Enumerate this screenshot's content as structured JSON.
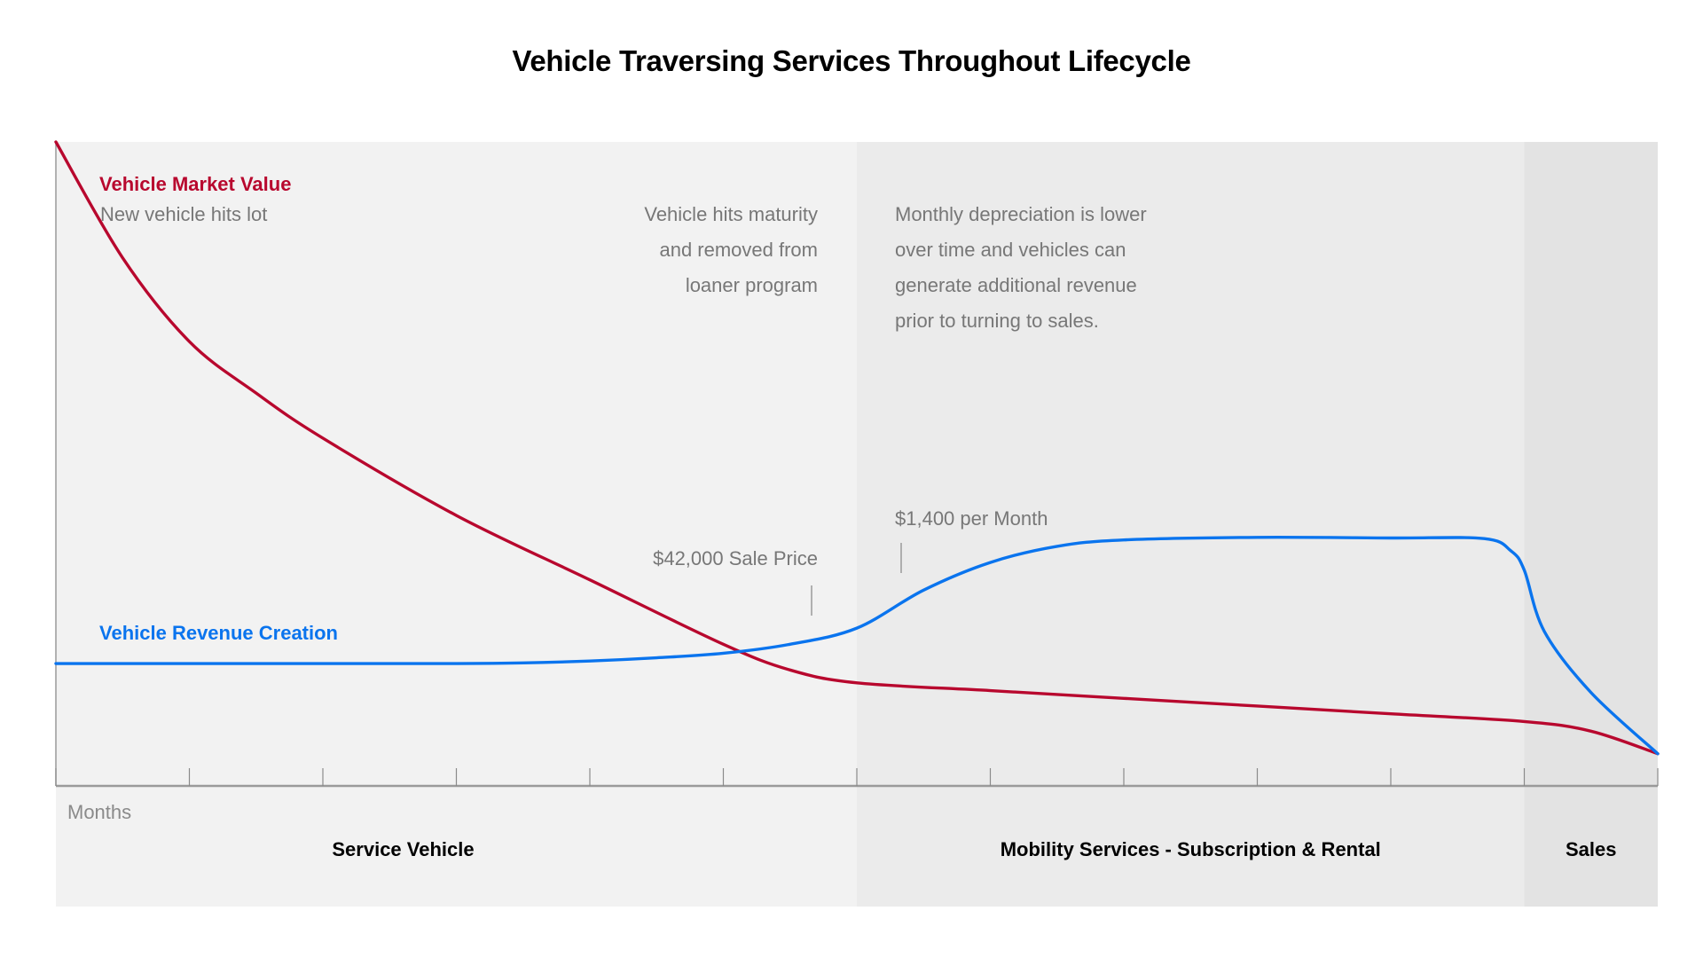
{
  "chart_data": {
    "type": "line",
    "title": "Vehicle Traversing Services Throughout Lifecycle",
    "xlabel": "Months",
    "ylabel": "",
    "xlim": [
      0,
      12
    ],
    "ylim": [
      0,
      100
    ],
    "x_ticks": [
      0,
      1,
      2,
      3,
      4,
      5,
      6,
      7,
      8,
      9,
      10,
      11,
      12
    ],
    "x_tick_labels_shown": false,
    "y_ticks_shown": false,
    "grid": false,
    "legend": "inline labels top-left",
    "phases": [
      {
        "name": "Service Vehicle",
        "start": 0,
        "end": 6,
        "color": "#f2f2f2"
      },
      {
        "name": "Mobility Services - Subscription & Rental",
        "start": 6,
        "end": 11,
        "color": "#ebebeb"
      },
      {
        "name": "Sales",
        "start": 11,
        "end": 12,
        "color": "#e3e3e3"
      }
    ],
    "series": [
      {
        "name": "Vehicle Market Value",
        "subtitle": "New vehicle hits lot",
        "color": "#b8082e",
        "points": [
          [
            0,
            100
          ],
          [
            0.5,
            82
          ],
          [
            1,
            69
          ],
          [
            1.5,
            61
          ],
          [
            2,
            54
          ],
          [
            3,
            42
          ],
          [
            4,
            32
          ],
          [
            5,
            22
          ],
          [
            5.5,
            18
          ],
          [
            6,
            16
          ],
          [
            7,
            14.8
          ],
          [
            8,
            13.6
          ],
          [
            9,
            12.4
          ],
          [
            10,
            11.2
          ],
          [
            11,
            10
          ],
          [
            11.5,
            8.5
          ],
          [
            12,
            5
          ]
        ]
      },
      {
        "name": "Vehicle Revenue Creation",
        "color": "#0a74ee",
        "points": [
          [
            0,
            19
          ],
          [
            1,
            19
          ],
          [
            2,
            19
          ],
          [
            3,
            19
          ],
          [
            3.5,
            19.1
          ],
          [
            4,
            19.4
          ],
          [
            4.5,
            19.9
          ],
          [
            5,
            20.6
          ],
          [
            5.5,
            22
          ],
          [
            6,
            24.5
          ],
          [
            6.5,
            30.4
          ],
          [
            7,
            34.7
          ],
          [
            7.5,
            37.2
          ],
          [
            8,
            38.2
          ],
          [
            9,
            38.6
          ],
          [
            10,
            38.5
          ],
          [
            10.7,
            38.4
          ],
          [
            10.9,
            36.5
          ],
          [
            11,
            33.5
          ],
          [
            11.15,
            24
          ],
          [
            11.5,
            14.5
          ],
          [
            12,
            5
          ]
        ]
      }
    ],
    "annotations": [
      {
        "text_lines": [
          "Vehicle hits maturity",
          "and removed from",
          "loaner program"
        ],
        "x": 6,
        "align": "right"
      },
      {
        "text_lines": [
          "Monthly depreciation is lower",
          "over time and vehicles can",
          "generate additional revenue",
          "prior to turning to sales."
        ],
        "x": 6,
        "align": "left"
      },
      {
        "text_lines": [
          "$42,000 Sale Price"
        ],
        "x": 5.75,
        "align": "right"
      },
      {
        "text_lines": [
          "$1,400 per Month"
        ],
        "x": 6.3,
        "align": "left"
      }
    ]
  }
}
